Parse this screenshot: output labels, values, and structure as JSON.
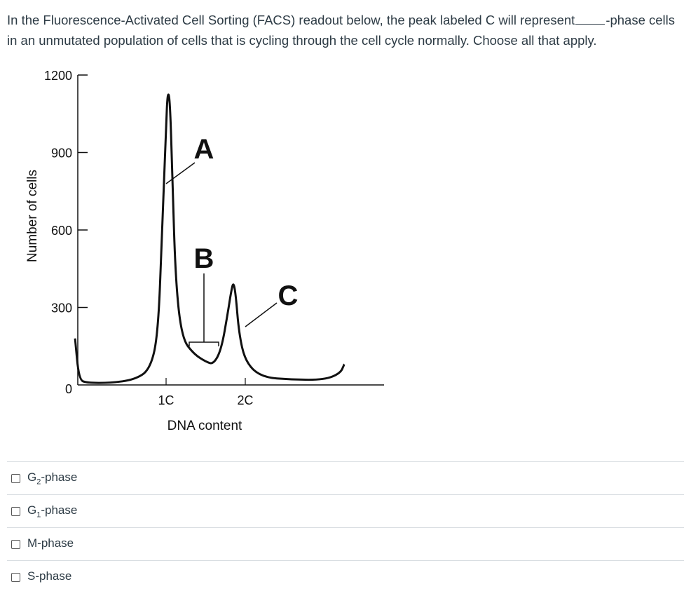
{
  "question": {
    "text_before": "In the Fluorescence-Activated Cell Sorting (FACS) readout below, the peak labeled C will represent",
    "text_after": "-phase cells in an unmutated population of cells that is cycling through the cell cycle normally. Choose all that apply."
  },
  "chart_data": {
    "type": "line",
    "ylabel": "Number of cells",
    "xlabel": "DNA content",
    "ylim": [
      0,
      1200
    ],
    "y_ticks": [
      "1200",
      "900",
      "600",
      "300",
      "0"
    ],
    "x_ticks": [
      "1C",
      "2C"
    ],
    "peak_labels": [
      "A",
      "B",
      "C"
    ],
    "series": [
      {
        "x": [
          0.85,
          0.9,
          1.0,
          1.3,
          1.6,
          1.8,
          1.9,
          1.95,
          2.0,
          2.02,
          2.05,
          2.08,
          2.12,
          2.2,
          2.35,
          2.5,
          2.6,
          2.7,
          2.78,
          2.82,
          2.85,
          2.88,
          2.92,
          3.0,
          3.2,
          3.6,
          4.0,
          4.2,
          4.25
        ],
        "y": [
          180,
          20,
          8,
          8,
          20,
          60,
          200,
          600,
          1000,
          1140,
          1100,
          800,
          400,
          180,
          120,
          90,
          80,
          140,
          280,
          360,
          400,
          350,
          200,
          90,
          30,
          20,
          20,
          45,
          80
        ]
      }
    ]
  },
  "answers": [
    {
      "main": "G",
      "sub": "2",
      "rest": "-phase"
    },
    {
      "main": "G",
      "sub": "1",
      "rest": "-phase"
    },
    {
      "main": "M-phase",
      "sub": "",
      "rest": ""
    },
    {
      "main": "S-phase",
      "sub": "",
      "rest": ""
    }
  ]
}
